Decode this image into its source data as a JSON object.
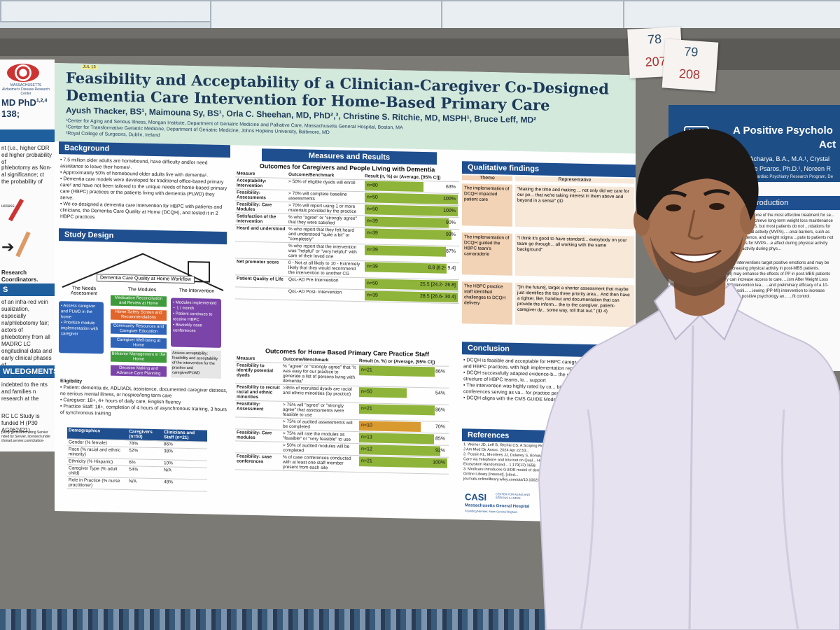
{
  "left_poster": {
    "logo_text": "MASSACHUSETTS Alzheimer's Disease Research Center",
    "author_frag": "MD PhD",
    "author_sup": "1,2,4",
    "num_frag": "138;",
    "text1": "nt (i.e., higher CDR ed higher probability of",
    "text2": "phlebotomy as Non- al significance; ct the probability of",
    "text3": "uccess",
    "text4": "Research Coordinators.",
    "bar1": "S",
    "text5": "of an infra-red vein sualization, especially na/phlebotomy fair; actors of phlebotomy from all MADRC LC ongitudinal data and early clinical phases of",
    "bar2": "WLEDGMENTS",
    "text6": "indebted to the nts and families n research at the",
    "text7": "RC LC Study is funded H (P30 AG062421).",
    "text8": "partly generated using Servier nded by Servier, licensed under //smart.servier.com/citation-"
  },
  "poster": {
    "tag": "JUL 15",
    "title": "Feasibility and Acceptability of a Clinician-Caregiver Co-Designed Dementia Care Intervention for Home-Based Primary Care",
    "authors": "Ayush Thacker, BS¹, Maimouna Sy, BS¹, Orla C. Sheehan, MD, PhD²,³, Christine S. Ritchie, MD, MSPH¹, Bruce Leff, MD²",
    "affil1": "¹Center for Aging and Serious Illness, Mongan Institute, Department of Geriatric Medicine and Palliative Care, Massachusetts General Hospital, Boston, MA",
    "affil2": "²Center for Transformative Geriatric Medicine, Department of Geriatric Medicine, Johns Hopkins University, Baltimore, MD",
    "affil3": "³Royal College of Surgeons, Dublin, Ireland",
    "background": {
      "heading": "Background",
      "b1": "• 7.5 million older adults are homebound, have difficulty and/or need assistance to leave their homes¹.",
      "b2": "• Approximately 50% of homebound older adults live with dementia¹.",
      "b3": "• Dementia care models were developed for traditional office-based primary care² and have not been tailored to the unique needs of home-based primary care (HBPC) practices or the patients living with dementia (PLWD) they serve.",
      "b4": "• We co-designed a dementia care intervention for HBPC with patients and clinicians, the Dementia Care Quality at Home (DCQH), and tested it in 2 HBPC practices"
    },
    "study": {
      "heading": "Study Design",
      "workflow_title": "Dementia Care Quality at Home Workflow",
      "needs_title": "The Needs Assessment",
      "needs_text": "• Assess caregiver and PLWD in the home\n• Prioritize module implementation with caregiver",
      "modules_title": "The Modules",
      "modules": [
        "Medication Reconciliation and Review at Home",
        "Home Safety Screen and Recommendations",
        "Community Resources and Caregiver Education",
        "Caregiver Well-being at Home",
        "Behavior Management in the Home",
        "Decision Making and Advance Care Planning"
      ],
      "intervention_title": "The Intervention",
      "intervention_text": "• Modules implemented ~ 1 / month\n• Patient continues to receive HBPC\n• Biweekly case conferences",
      "assess_text": "Assess acceptability: feasibility and acceptability of the intervention for the practice and caregiver/PLWD",
      "eligibility_title": "Eligibility",
      "elig1": "• Patient: dementia dx, ADL/IADL assistance, documented caregiver distress, no serious mental illness, or hospice/long term care",
      "elig2": "• Caregiver: 18+, 4+ hours of daily care, English fluency",
      "elig3": "• Practice Staff: 18+, completion of 4 hours of asynchronous training, 3 hours of synchronous training"
    },
    "demographics": {
      "headers": [
        "Demographics",
        "Caregivers (n=50)",
        "Clinicians and Staff (n=21)"
      ],
      "rows": [
        [
          "Gender (% female)",
          "78%",
          "86%"
        ],
        [
          "Race (% racial and ethnic minority)",
          "52%",
          "38%"
        ],
        [
          "Ethnicity (% Hispanic)",
          "6%",
          "10%"
        ],
        [
          "Caregiver Type (% adult child)",
          "54%",
          "N/A"
        ],
        [
          "Role in Practice (% nurse practitioner)",
          "N/A",
          "48%"
        ]
      ]
    },
    "measures": {
      "heading": "Measures and Results",
      "subheading": "Outcomes for Caregivers and People Living with Dementia",
      "headers": [
        "Measure",
        "Outcome/Benchmark",
        "Result (n, %) or (Average, [95% CI])"
      ],
      "rows": [
        {
          "measure": "Acceptability: Intervention",
          "bench": "> 50% of eligible dyads will enroll",
          "n": "n=80",
          "r": "63%",
          "fill": 0.63
        },
        {
          "measure": "Feasibility: Assessments",
          "bench": "> 70% will complete baseline assessments",
          "n": "n=50",
          "r": "100%",
          "fill": 1.0
        },
        {
          "measure": "Feasibility: Care Modules",
          "bench": "> 70% will report using 1 or more materials provided by the practice",
          "n": "n=50",
          "r": "100%",
          "fill": 1.0
        },
        {
          "measure": "Satisfaction of the intervention",
          "bench": "% who \"agree\" or \"strongly agree\" that they were satisfied",
          "n": "n=39",
          "r": "90%",
          "fill": 0.9
        },
        {
          "measure": "Heard and understood",
          "bench": "% who report that they felt heard and understood \"quite a bit\" or \"completely\"",
          "n": "n=39",
          "r": "93%",
          "fill": 0.93
        },
        {
          "measure": "",
          "bench": "% who report that the intervention was \"helpful\" or \"very helpful\" with care of their loved one",
          "n": "n=39",
          "r": "87%",
          "fill": 0.87
        },
        {
          "measure": "Net promotor score",
          "bench": "0 - Not at all likely to 10 - Extremely likely that they would recommend the intervention to another CG",
          "n": "n=39",
          "r": "8.8   [8.2- 9.4]",
          "fill": 0.88
        },
        {
          "measure": "Patient Quality of Life",
          "bench": "QoL-AD Pre-Intervention",
          "n": "n=50",
          "r": "25.5   [24.2- 26.8]",
          "fill": 1.0
        },
        {
          "measure": "",
          "bench": "QoL-AD Post- Intervention",
          "n": "n=39",
          "r": "28.5   [26.6- 30.4]",
          "fill": 1.0
        }
      ]
    },
    "staff": {
      "subheading": "Outcomes for Home Based Primary Care Practice Staff",
      "headers": [
        "Measure",
        "Outcome/Benchmark",
        "Result (n, %) or (Average, [95% CI])"
      ],
      "rows": [
        {
          "measure": "Feasibility to identify potential dyads",
          "bench": "% \"agree\" or \"strongly agree\" that \"it was easy for our practice to generate a list of persons living with dementia\"",
          "n": "n=21",
          "r": "86%",
          "fill": 0.86
        },
        {
          "measure": "Feasibility to recruit racial and ethnic minorities",
          "bench": ">35% of recruited dyads are racial and ethnic minorities (by practice)",
          "n": "n=50",
          "r": "54%",
          "fill": 0.54
        },
        {
          "measure": "Feasibility: Assessment",
          "bench": "> 75% will \"agree\" or \"strongly agree\" that assessments were feasible to use",
          "n": "n=21",
          "r": "86%",
          "fill": 0.86
        },
        {
          "measure": "",
          "bench": "> 75% of audited assessments will be completed",
          "n": "n=10",
          "r": "70%",
          "fill": 0.7
        },
        {
          "measure": "Feasibility: Care modules",
          "bench": "> 75% will rate the modules as \"feasible\" or \"very feasible\" to use",
          "n": "n=13",
          "r": "85%",
          "fill": 0.85
        },
        {
          "measure": "",
          "bench": "> 50% of audited modules will be completed",
          "n": "n=12",
          "r": "92%",
          "fill": 0.92
        },
        {
          "measure": "Feasibility: case conferences",
          "bench": "% of case conferences conducted with at least one staff member present from each site",
          "n": "n=21",
          "r": "100%",
          "fill": 1.0
        }
      ]
    },
    "qualitative": {
      "heading": "Qualitative findings",
      "col1": "Theme",
      "col2": "Representative",
      "rows": [
        {
          "theme": "The implementation of DCQH impacted patient care",
          "quote": "\"Making the time and making ... not only did we care for our po... that we're taking interest in them above and beyond in a sense\" (ID"
        },
        {
          "theme": "The implementation of DCQH guided the HBPC team's camaraderie",
          "quote": "\"I think it's good to have standard... everybody on your team go through... all working with the same background\""
        },
        {
          "theme": "The HBPC practice staff identified challenges to DCQH delivery",
          "quote": "\"[In the future], target a shorter assessment that maybe just identifies the top three priority area... And then have a tighter, like, handout and documentation that can provide the inform... the to the caregiver, patient-caregiver dy... some way, roll that out.\" (ID 4)"
        }
      ]
    },
    "conclusion": {
      "heading": "Conclusion",
      "c1": "• DCQH is feasible and acceptable for HBPC caregivers, and HBPC practices, with high implementation reported",
      "c2": "• DCQH successfully adapted evidence-b... the unique structure of HBPC teams, le... support",
      "c3": "• The intervention was highly rated by ca... biweekly case conferences serving as va... for practice personnel",
      "c4": "• DCQH aligns with the CMS GUIDE Mode..."
    },
    "references": {
      "heading": "References",
      "r1": "1. Weiner JD, Leff B, Ritchie CS. A Scoping Review of D... Primary Care. J Am Med Dir Assoc. 2024 Apr 22;53...",
      "r2": "2. Possin KL, Merrilees JJ, Dulaney S, Bonasera SJ, Chi... Dementia Care via Telephone and Internet on Qual... Health Care Use: The Care Ecosystem Randomized... 1;179(12):1658.",
      "r3": "3. Medicare introduces GUIDE model of dementia ca... Dementia - Wiley Online Library [Internet]. [cited... journals.onlinelibrary.wiley.com/doi/10.1002/alz..."
    },
    "logos": {
      "casi": "CASI",
      "casi_sub": "CENTER FOR AGING AND SERIOUS ILLNESS",
      "mgh": "Massachusetts General Hospital",
      "mgh_sub": "Founding Member, Mass General Brigham"
    }
  },
  "notes": [
    {
      "top": "78",
      "bottom": "207"
    },
    {
      "top": "79",
      "bottom": "208"
    }
  ],
  "right_poster": {
    "logo": "MGH",
    "logo_year": "1811",
    "title": "A Positive Psycholo",
    "title2": "Act",
    "authors1": "Nikita B. Acharya, B.A., M.A.¹, Crystal",
    "authors2": "Christine Psaros, Ph.D.¹, Noreen R",
    "affil": "¹Cardiac Psychiatry Research Program, De",
    "intro_heading": "Introduction",
    "intro1": "and bariatric surgery (MBS) is one of the most effective treatment for se... 25% of these patients do not achieve long-term weight loss maintenance ...activity is important post-MBS, but most patients do not ...ndations for moderate-to-vigorous physical activity (MVPA). ...onal barriers, such as fear of injury, lack of confidence, and weight stigma ...pute to patients not meeting recommendations for MVPA ...e affect during physical activity predicts future physical activity during phys...",
    "intro2": "...e psychology (PP) interventions target positive emotions and may be particularly ...for increasing physical activity in post-MBS patients. ...interviewing (MI) may enhance the effects of PP in post-MBS patients ...ention delivery can increase access to care. ...ism After Weight Loss Surgery (GOALS) intervention tea... ...and preliminary efficacy of a 10-week phone-based positi... ...iewing (PP-MI) intervention to increase physical activ... ...using positive psychology an... ...fit control."
  },
  "colors": {
    "poster_header": "#d3e9dc",
    "section_bar": "#1f4f8f",
    "result_fill": "#8fb43a",
    "result_fill_low": "#d99a30",
    "module_blue": "#2f64b8",
    "module_green": "#3f9a3c",
    "module_orange": "#e0662b",
    "module_purple": "#7a44a8",
    "shirt": "#e4e0ee"
  }
}
